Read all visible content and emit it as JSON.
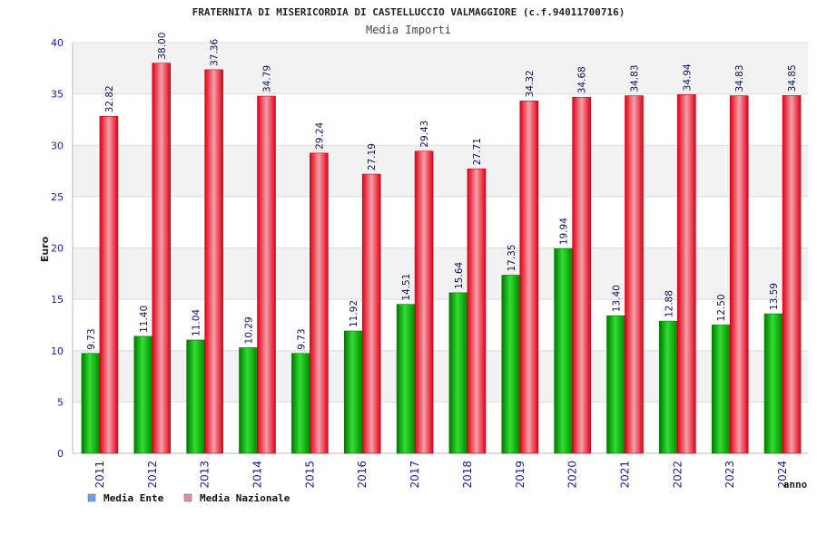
{
  "chart_data": {
    "type": "bar",
    "title": "FRATERNITA DI MISERICORDIA DI CASTELLUCCIO VALMAGGIORE (c.f.94011700716)",
    "subtitle": "Media Importi",
    "ylabel": "Euro",
    "xlabel": "anno",
    "ylim": [
      0,
      40
    ],
    "yticks": [
      0,
      5,
      10,
      15,
      20,
      25,
      30,
      35,
      40
    ],
    "grid": true,
    "legend_position": "bottom-left",
    "categories": [
      "2011",
      "2012",
      "2013",
      "2014",
      "2015",
      "2016",
      "2017",
      "2018",
      "2019",
      "2020",
      "2021",
      "2022",
      "2023",
      "2024"
    ],
    "series": [
      {
        "name": "Media Ente",
        "color": "#00aa00",
        "legend_color": "#6a9ee8",
        "values": [
          9.73,
          11.4,
          11.04,
          10.29,
          9.73,
          11.92,
          14.51,
          15.64,
          17.35,
          19.94,
          13.4,
          12.88,
          12.5,
          13.59
        ],
        "labels": [
          "9.73",
          "11.40",
          "11.04",
          "10.29",
          "9.73",
          "11.92",
          "14.51",
          "15.64",
          "17.35",
          "19.94",
          "13.40",
          "12.88",
          "12.50",
          "13.59"
        ]
      },
      {
        "name": "Media Nazionale",
        "color": "#e8001c",
        "legend_color": "#e08ab8",
        "values": [
          32.82,
          38.0,
          37.36,
          34.79,
          29.24,
          27.19,
          29.43,
          27.71,
          34.32,
          34.68,
          34.83,
          34.94,
          34.83,
          34.85
        ],
        "labels": [
          "32.82",
          "38.00",
          "37.36",
          "34.79",
          "29.24",
          "27.19",
          "29.43",
          "27.71",
          "34.32",
          "34.68",
          "34.83",
          "34.94",
          "34.83",
          "34.85"
        ]
      }
    ]
  }
}
